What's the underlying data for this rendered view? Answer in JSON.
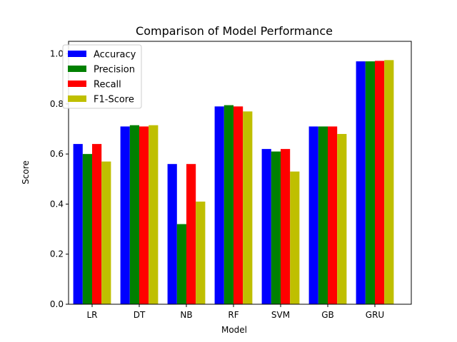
{
  "chart_data": {
    "type": "bar",
    "title": "Comparison of Model Performance",
    "xlabel": "Model",
    "ylabel": "Score",
    "ylim": [
      0,
      1.05
    ],
    "yticks": [
      "0.0",
      "0.2",
      "0.4",
      "0.6",
      "0.8",
      "1.0"
    ],
    "ytick_values": [
      0.0,
      0.2,
      0.4,
      0.6,
      0.8,
      1.0
    ],
    "categories": [
      "LR",
      "DT",
      "NB",
      "RF",
      "SVM",
      "GB",
      "GRU"
    ],
    "legend_position": "top-left",
    "grid": false,
    "series": [
      {
        "name": "Accuracy",
        "color": "#0000ff",
        "values": [
          0.64,
          0.71,
          0.56,
          0.79,
          0.62,
          0.71,
          0.97
        ]
      },
      {
        "name": "Precision",
        "color": "#008000",
        "values": [
          0.6,
          0.715,
          0.32,
          0.795,
          0.61,
          0.71,
          0.97
        ]
      },
      {
        "name": "Recall",
        "color": "#ff0000",
        "values": [
          0.64,
          0.71,
          0.56,
          0.79,
          0.62,
          0.71,
          0.972
        ]
      },
      {
        "name": "F1-Score",
        "color": "#bfbf00",
        "values": [
          0.57,
          0.715,
          0.41,
          0.77,
          0.53,
          0.68,
          0.975
        ]
      }
    ]
  }
}
